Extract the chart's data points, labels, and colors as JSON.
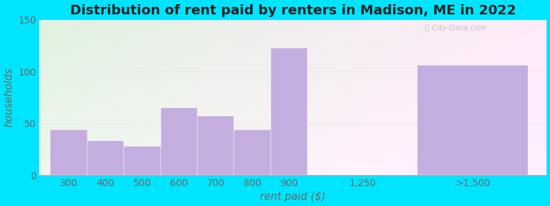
{
  "title": "Distribution of rent paid by renters in Madison, ME in 2022",
  "xlabel": "rent paid ($)",
  "ylabel": "households",
  "categories": [
    "300",
    "400",
    "500",
    "600",
    "700",
    "800",
    "900",
    "1,250",
    ">1,500"
  ],
  "values": [
    44,
    33,
    28,
    65,
    57,
    44,
    123,
    0,
    106
  ],
  "bar_color": "#c4aee0",
  "bar_edgecolor": "#c4aee0",
  "background_outer": "#00e5ff",
  "ylim": [
    0,
    150
  ],
  "yticks": [
    0,
    50,
    100,
    150
  ],
  "title_fontsize": 14,
  "axis_label_fontsize": 11,
  "tick_fontsize": 10,
  "tick_color": "#666666",
  "label_color": "#666666",
  "grid_color": "#e8e8e8",
  "watermark": "City-Data.com"
}
